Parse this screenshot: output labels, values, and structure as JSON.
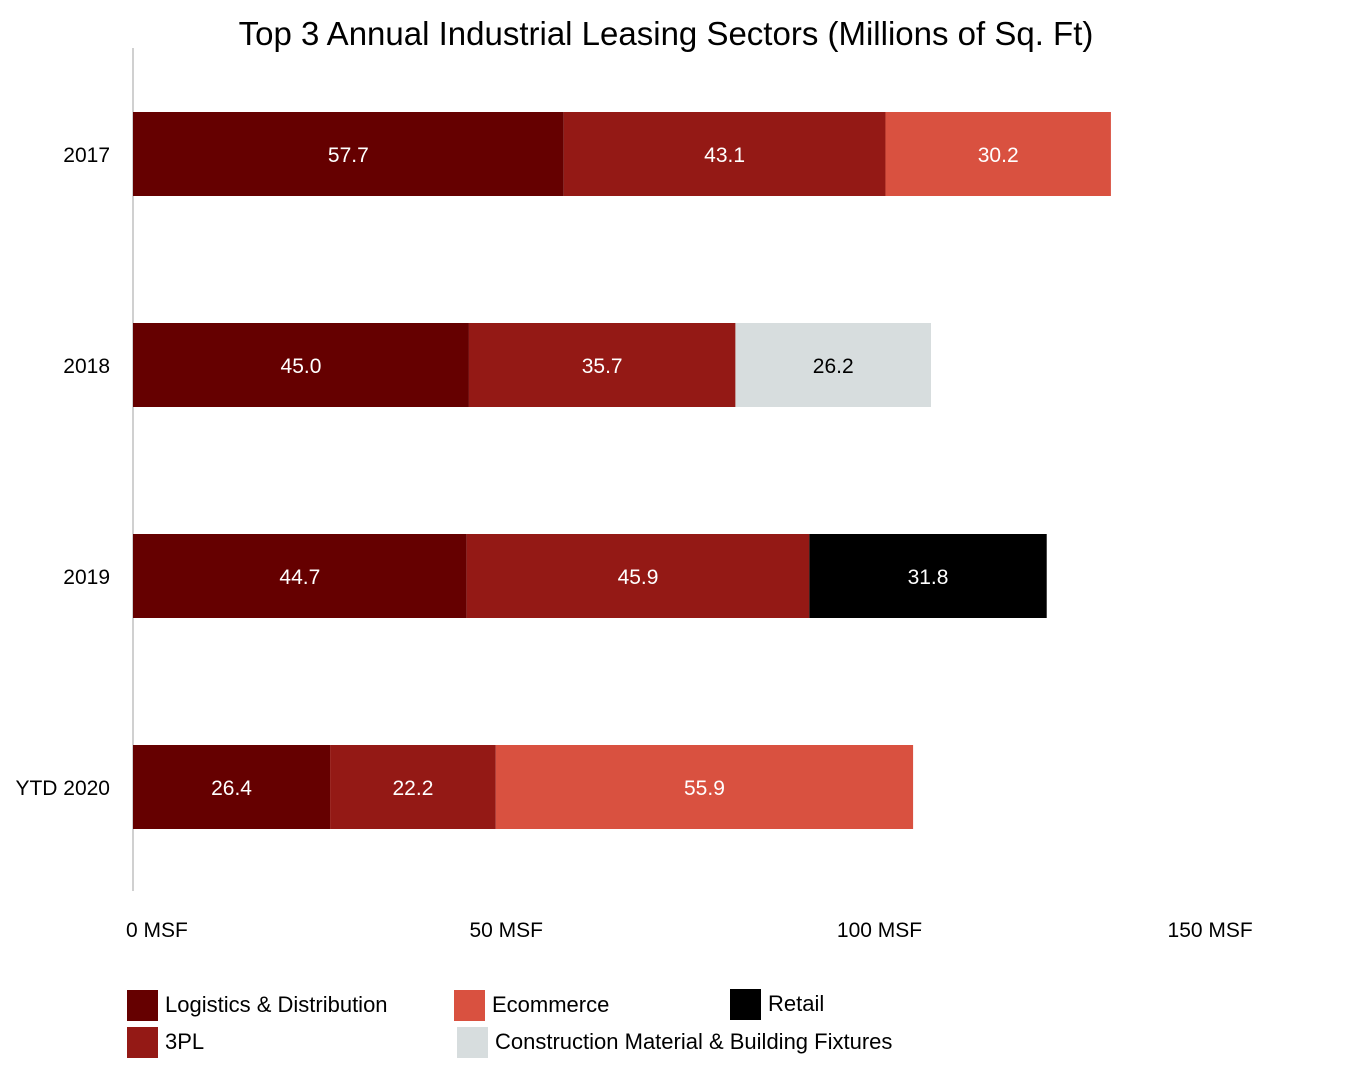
{
  "chart_data": {
    "type": "bar",
    "orientation": "horizontal",
    "stacked": true,
    "title": "Top 3 Annual Industrial Leasing Sectors (Millions of Sq. Ft)",
    "xlim": [
      0,
      150
    ],
    "x_ticks": [
      0,
      50,
      100,
      150
    ],
    "x_tick_labels": [
      "0 MSF",
      "50 MSF",
      "100 MSF",
      "150 MSF"
    ],
    "grid": false,
    "legend_position": "bottom",
    "categories": [
      "2017",
      "2018",
      "2019",
      "YTD 2020"
    ],
    "sectors": [
      {
        "name": "Logistics & Distribution",
        "color": "#650000"
      },
      {
        "name": "3PL",
        "color": "#941915"
      },
      {
        "name": "Ecommerce",
        "color": "#D95140"
      },
      {
        "name": "Construction Material & Building Fixtures",
        "color": "#D7DDDE"
      },
      {
        "name": "Retail",
        "color": "#000000"
      }
    ],
    "rows": [
      {
        "category": "2017",
        "segments": [
          {
            "sector": "Logistics & Distribution",
            "value": 57.7,
            "label": "57.7"
          },
          {
            "sector": "3PL",
            "value": 43.1,
            "label": "43.1"
          },
          {
            "sector": "Ecommerce",
            "value": 30.2,
            "label": "30.2"
          }
        ]
      },
      {
        "category": "2018",
        "segments": [
          {
            "sector": "Logistics & Distribution",
            "value": 45.0,
            "label": "45.0"
          },
          {
            "sector": "3PL",
            "value": 35.7,
            "label": "35.7"
          },
          {
            "sector": "Construction Material & Building Fixtures",
            "value": 26.2,
            "label": "26.2"
          }
        ]
      },
      {
        "category": "2019",
        "segments": [
          {
            "sector": "Logistics & Distribution",
            "value": 44.7,
            "label": "44.7"
          },
          {
            "sector": "3PL",
            "value": 45.9,
            "label": "45.9"
          },
          {
            "sector": "Retail",
            "value": 31.8,
            "label": "31.8"
          }
        ]
      },
      {
        "category": "YTD 2020",
        "segments": [
          {
            "sector": "Logistics & Distribution",
            "value": 26.4,
            "label": "26.4"
          },
          {
            "sector": "3PL",
            "value": 22.2,
            "label": "22.2"
          },
          {
            "sector": "Ecommerce",
            "value": 55.9,
            "label": "55.9"
          }
        ]
      }
    ],
    "legend": [
      {
        "name": "Logistics & Distribution",
        "color": "#650000"
      },
      {
        "name": "Ecommerce",
        "color": "#D95140"
      },
      {
        "name": "Retail",
        "color": "#000000"
      },
      {
        "name": "3PL",
        "color": "#941915"
      },
      {
        "name": "Construction Material & Building Fixtures",
        "color": "#D7DDDE"
      }
    ]
  }
}
